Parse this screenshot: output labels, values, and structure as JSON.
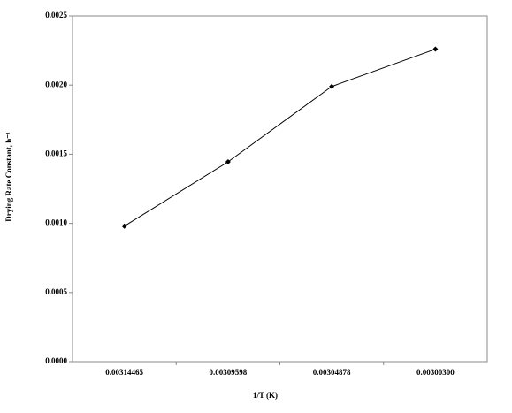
{
  "chart_data": {
    "type": "line",
    "x_label": "1/T (K)",
    "y_label": "Drying Rate Constant, h⁻¹",
    "categories": [
      "0.00314465",
      "0.00309598",
      "0.00304878",
      "0.00300300"
    ],
    "values": [
      0.00098,
      0.001445,
      0.00199,
      0.00226
    ],
    "color": "#000000",
    "ylim": [
      0,
      0.0025
    ],
    "yticks": [
      {
        "value": 0,
        "label": "0.0000"
      },
      0.0005,
      {
        "value": 0.001,
        "label": "0.0010"
      },
      0.0015,
      {
        "value": 0.002,
        "label": "0.0020"
      },
      0.0025
    ],
    "grid": false
  }
}
